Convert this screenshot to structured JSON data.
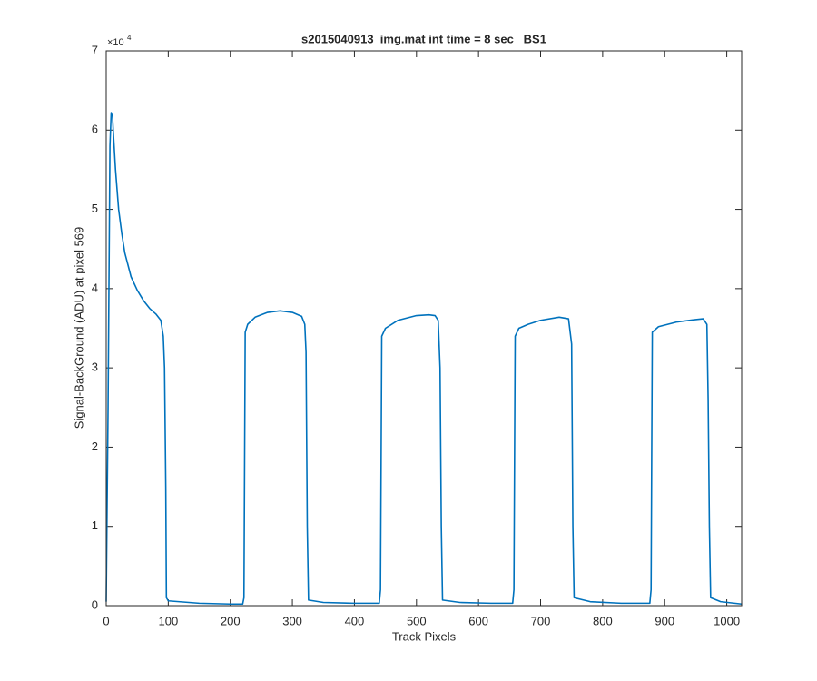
{
  "chart_data": {
    "type": "line",
    "title": "s2015040913_img.mat int time = 8 sec   BS1",
    "x_label": "Track Pixels",
    "y_label": "Signal-BackGround (ADU) at pixel 569",
    "y_multiplier_base": "×10",
    "y_multiplier_exponent": "4",
    "xlim": [
      0,
      1024
    ],
    "ylim": [
      0,
      7
    ],
    "xticks": [
      0,
      100,
      200,
      300,
      400,
      500,
      600,
      700,
      800,
      900,
      1000
    ],
    "yticks": [
      0,
      1,
      2,
      3,
      4,
      5,
      6,
      7
    ],
    "grid": false,
    "series": [
      {
        "color": "#0072bd",
        "x": [
          0,
          3,
          6,
          8,
          10,
          12,
          15,
          20,
          25,
          30,
          40,
          50,
          60,
          70,
          80,
          88,
          92,
          94,
          96,
          97,
          100,
          150,
          200,
          220,
          222,
          224,
          228,
          240,
          260,
          280,
          300,
          315,
          320,
          322,
          324,
          326,
          350,
          400,
          440,
          442,
          444,
          450,
          470,
          500,
          520,
          530,
          535,
          538,
          540,
          542,
          570,
          620,
          655,
          657,
          659,
          665,
          680,
          700,
          730,
          745,
          750,
          752,
          754,
          780,
          830,
          876,
          878,
          880,
          890,
          920,
          950,
          962,
          968,
          970,
          972,
          974,
          990,
          1024
        ],
        "values": [
          0.05,
          2.5,
          5.8,
          6.22,
          6.2,
          5.9,
          5.5,
          5.0,
          4.7,
          4.45,
          4.15,
          3.98,
          3.85,
          3.75,
          3.68,
          3.6,
          3.4,
          3.0,
          1.5,
          0.1,
          0.06,
          0.03,
          0.02,
          0.02,
          0.1,
          3.45,
          3.55,
          3.64,
          3.7,
          3.72,
          3.7,
          3.65,
          3.55,
          3.2,
          1.0,
          0.07,
          0.04,
          0.03,
          0.03,
          0.2,
          3.4,
          3.5,
          3.6,
          3.66,
          3.67,
          3.66,
          3.6,
          3.0,
          1.0,
          0.07,
          0.04,
          0.03,
          0.03,
          0.2,
          3.4,
          3.5,
          3.55,
          3.6,
          3.64,
          3.62,
          3.3,
          1.0,
          0.1,
          0.05,
          0.03,
          0.03,
          0.2,
          3.45,
          3.52,
          3.58,
          3.61,
          3.62,
          3.55,
          2.6,
          1.0,
          0.1,
          0.05,
          0.02
        ]
      }
    ]
  }
}
